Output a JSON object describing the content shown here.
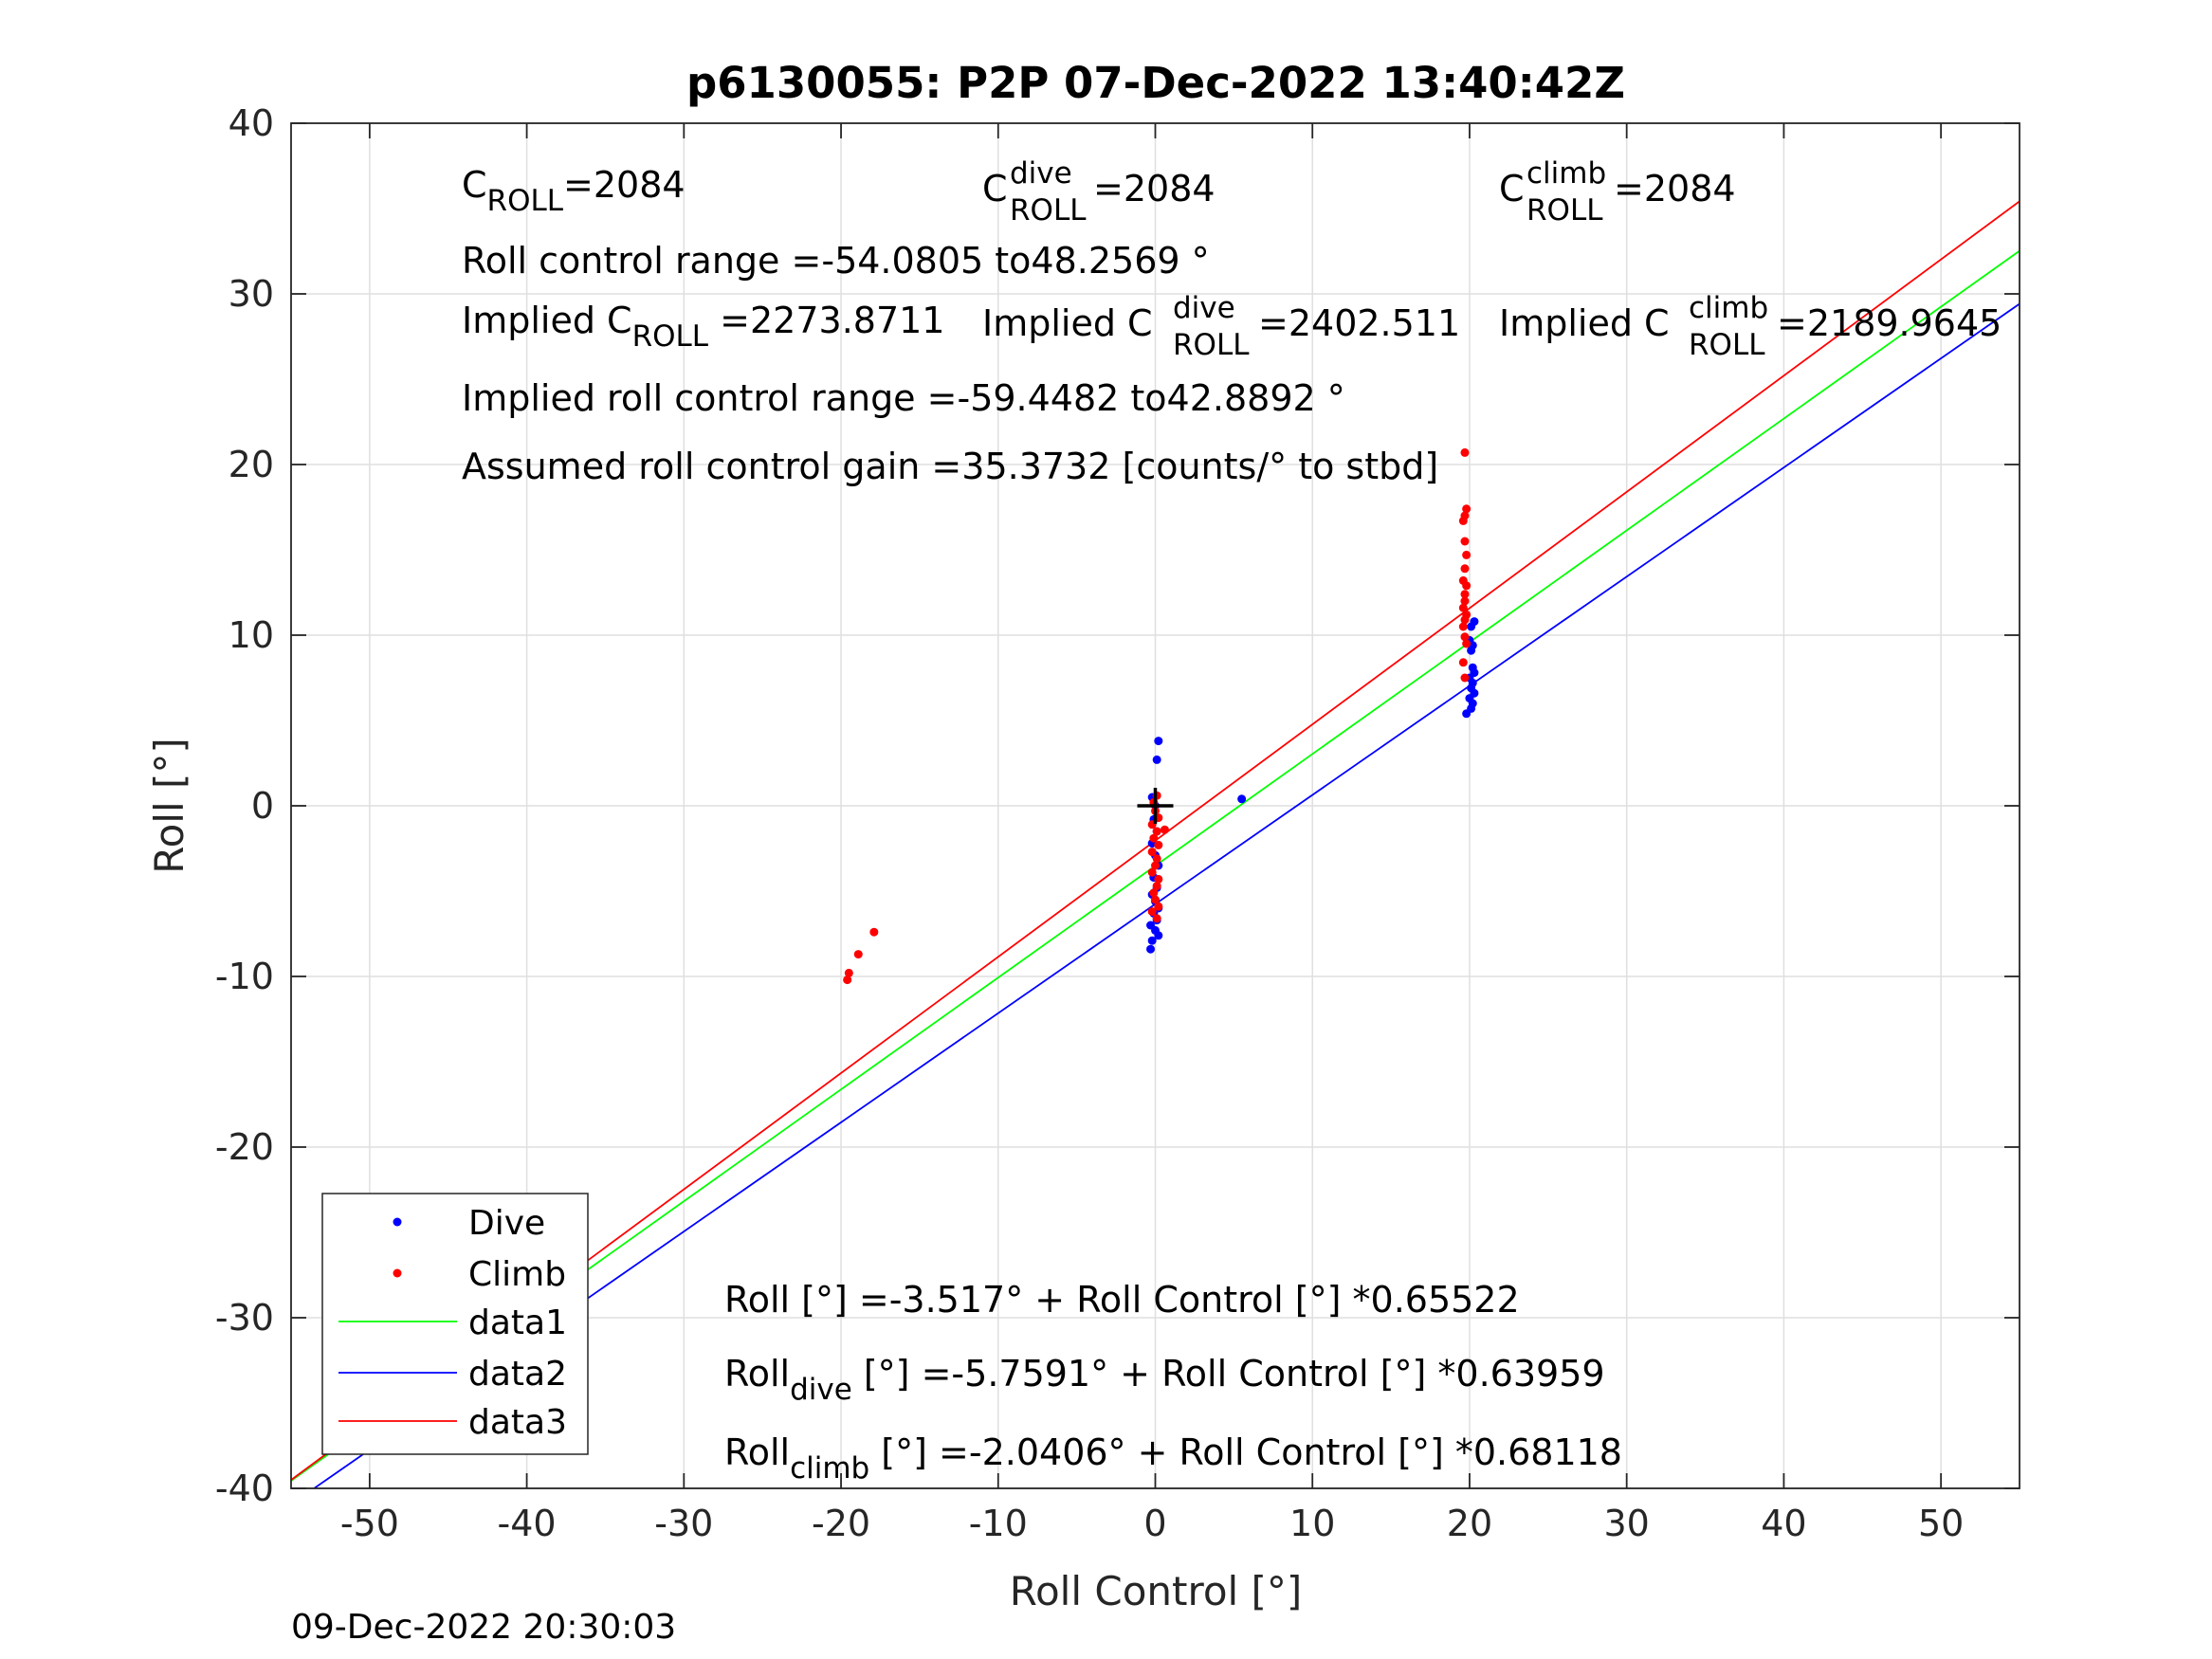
{
  "chart_data": {
    "type": "scatter",
    "title": "p6130055: P2P 07-Dec-2022 13:40:42Z",
    "xlabel": "Roll Control [°]",
    "ylabel": "Roll [°]",
    "xlim": [
      -55,
      55
    ],
    "ylim": [
      -40,
      40
    ],
    "xticks": [
      -50,
      -40,
      -30,
      -20,
      -10,
      0,
      10,
      20,
      30,
      40,
      50
    ],
    "yticks": [
      -40,
      -30,
      -20,
      -10,
      0,
      10,
      20,
      30,
      40
    ],
    "xtick_labels": [
      "-50",
      "-40",
      "-30",
      "-20",
      "-10",
      "0",
      "10",
      "20",
      "30",
      "40",
      "50"
    ],
    "ytick_labels": [
      "-40",
      "-30",
      "-20",
      "-10",
      "0",
      "10",
      "20",
      "30",
      "40"
    ],
    "grid": true,
    "legend_position": "bottom-left",
    "series": [
      {
        "name": "Dive",
        "kind": "points",
        "color": "#0000ff",
        "points": [
          [
            0.2,
            3.8
          ],
          [
            0.1,
            2.7
          ],
          [
            -0.2,
            0.5
          ],
          [
            0.0,
            0.0
          ],
          [
            -0.1,
            -0.8
          ],
          [
            0.1,
            -1.5
          ],
          [
            -0.2,
            -2.2
          ],
          [
            0.0,
            -2.9
          ],
          [
            0.2,
            -3.5
          ],
          [
            -0.1,
            -4.2
          ],
          [
            0.1,
            -4.8
          ],
          [
            -0.2,
            -5.2
          ],
          [
            0.0,
            -5.6
          ],
          [
            0.2,
            -6.0
          ],
          [
            -0.1,
            -6.3
          ],
          [
            0.1,
            -6.7
          ],
          [
            -0.3,
            -7.0
          ],
          [
            0.0,
            -7.3
          ],
          [
            0.2,
            -7.6
          ],
          [
            -0.2,
            -7.9
          ],
          [
            -0.3,
            -8.4
          ],
          [
            5.5,
            0.4
          ],
          [
            19.8,
            5.4
          ],
          [
            20.1,
            5.7
          ],
          [
            20.2,
            6.0
          ],
          [
            20.0,
            6.3
          ],
          [
            20.3,
            6.6
          ],
          [
            20.1,
            6.9
          ],
          [
            20.2,
            7.2
          ],
          [
            20.0,
            7.5
          ],
          [
            20.3,
            7.8
          ],
          [
            20.2,
            8.1
          ],
          [
            20.1,
            9.1
          ],
          [
            20.2,
            9.4
          ],
          [
            20.0,
            9.7
          ],
          [
            20.1,
            10.5
          ],
          [
            20.3,
            10.8
          ]
        ]
      },
      {
        "name": "Climb",
        "kind": "points",
        "color": "#ff0000",
        "points": [
          [
            -19.5,
            -9.8
          ],
          [
            -19.6,
            -10.2
          ],
          [
            -18.9,
            -8.7
          ],
          [
            -17.9,
            -7.4
          ],
          [
            0.1,
            0.6
          ],
          [
            -0.1,
            0.2
          ],
          [
            0.0,
            -0.3
          ],
          [
            0.2,
            -0.7
          ],
          [
            -0.2,
            -1.1
          ],
          [
            0.1,
            -1.5
          ],
          [
            0.6,
            -1.4
          ],
          [
            -0.1,
            -1.9
          ],
          [
            0.2,
            -2.3
          ],
          [
            -0.2,
            -2.7
          ],
          [
            0.1,
            -3.1
          ],
          [
            0.0,
            -3.5
          ],
          [
            -0.2,
            -3.9
          ],
          [
            0.2,
            -4.3
          ],
          [
            0.1,
            -4.7
          ],
          [
            -0.1,
            -5.1
          ],
          [
            0.0,
            -5.5
          ],
          [
            0.2,
            -5.9
          ],
          [
            -0.2,
            -6.2
          ],
          [
            0.1,
            -6.6
          ],
          [
            19.7,
            20.7
          ],
          [
            19.8,
            17.4
          ],
          [
            19.7,
            17.0
          ],
          [
            19.6,
            16.7
          ],
          [
            19.7,
            15.5
          ],
          [
            19.8,
            14.7
          ],
          [
            19.7,
            13.9
          ],
          [
            19.6,
            13.2
          ],
          [
            19.8,
            12.9
          ],
          [
            19.7,
            12.4
          ],
          [
            19.7,
            12.0
          ],
          [
            19.6,
            11.6
          ],
          [
            19.8,
            11.2
          ],
          [
            19.7,
            10.9
          ],
          [
            19.6,
            10.5
          ],
          [
            19.7,
            9.9
          ],
          [
            19.8,
            9.5
          ],
          [
            19.6,
            8.4
          ],
          [
            19.7,
            7.5
          ]
        ]
      },
      {
        "name": "data1",
        "kind": "line",
        "color": "#00ff00",
        "x": [
          -55,
          55
        ],
        "intercept": -3.517,
        "slope": 0.65522
      },
      {
        "name": "data2",
        "kind": "line",
        "color": "#0000ff",
        "x": [
          -55,
          55
        ],
        "intercept": -5.7591,
        "slope": 0.63959
      },
      {
        "name": "data3",
        "kind": "line",
        "color": "#ff0000",
        "x": [
          -55,
          55
        ],
        "intercept": -2.0406,
        "slope": 0.68118
      }
    ],
    "center_marker": {
      "x": 0,
      "y": 0,
      "color": "#000000"
    },
    "annotations": {
      "c_roll": {
        "base": "C",
        "sub": "ROLL",
        "value": "=2084"
      },
      "c_roll_dive": {
        "base": "C",
        "sup": "dive",
        "sub": "ROLL",
        "value": " =2084"
      },
      "c_roll_climb": {
        "base": "C",
        "sup": "climb",
        "sub": "ROLL",
        "value": " =2084"
      },
      "roll_control_range": "Roll control range =-54.0805 to48.2569 °",
      "implied_c_roll": {
        "prefix": "Implied C",
        "sub": "ROLL",
        "value": " =2273.8711"
      },
      "implied_c_roll_dive": {
        "prefix": "Implied C",
        "sup": "dive",
        "sub": "ROLL",
        "value": " =2402.511"
      },
      "implied_c_roll_climb": {
        "prefix": "Implied C",
        "sup": "climb",
        "sub": "ROLL",
        "value": " =2189.9645"
      },
      "implied_roll_control_range": "Implied roll control range =-59.4482 to42.8892 °",
      "assumed_gain": "Assumed roll control gain =35.3732 [counts/° to stbd]",
      "fit_all": "Roll [°] =-3.517° + Roll Control [°] *0.65522",
      "fit_dive": {
        "prefix": "Roll",
        "sub": "dive",
        "value": " [°] =-5.7591° + Roll Control [°] *0.63959"
      },
      "fit_climb": {
        "prefix": "Roll",
        "sub": "climb",
        "value": " [°] =-2.0406° + Roll Control [°] *0.68118"
      }
    }
  },
  "footer": {
    "timestamp": "09-Dec-2022 20:30:03"
  }
}
